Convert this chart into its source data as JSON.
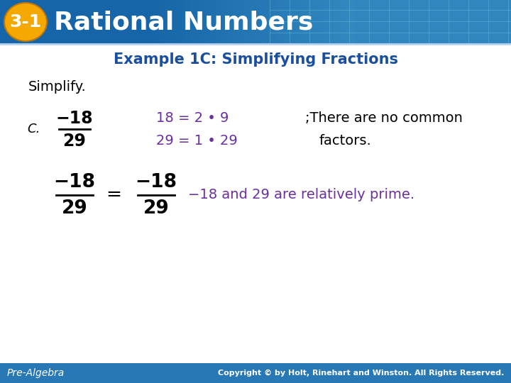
{
  "title_text": "Rational Numbers",
  "title_num": "3-1",
  "subtitle": "Example 1C: Simplifying Fractions",
  "simplify_label": "Simplify.",
  "c_label": "C.",
  "frac1_num": "−18",
  "frac1_den": "29",
  "factor_line1": "18 = 2 • 9",
  "factor_line2": "29 = 1 • 29",
  "comment_line1": ";There are no common",
  "comment_line2": "factors.",
  "eq_frac_left_num": "−18",
  "eq_frac_left_den": "29",
  "eq_sign": "=",
  "eq_frac_right_num": "−18",
  "eq_frac_right_den": "29",
  "conclusion": "−18 and 29 are relatively prime.",
  "footer_left": "Pre-Algebra",
  "footer_right": "Copyright © by Holt, Rinehart and Winston. All Rights Reserved.",
  "header_bg_dark": "#1565a8",
  "header_bg_light": "#4ea8d4",
  "header_text_color": "#ffffff",
  "badge_color": "#f5a800",
  "badge_text_color": "#ffffff",
  "subtitle_color": "#1a4fa0",
  "body_bg": "#ffffff",
  "black_text": "#000000",
  "purple_text": "#6b2fa0",
  "footer_bg": "#2878b5",
  "footer_text_color": "#ffffff",
  "grid_color": "#6bbfe0"
}
